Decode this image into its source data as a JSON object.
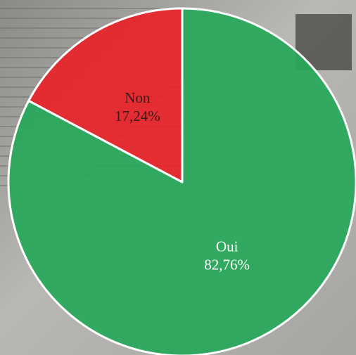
{
  "chart_data": {
    "type": "pie",
    "categories": [
      "Oui",
      "Non"
    ],
    "values": [
      82.76,
      17.24
    ],
    "value_labels": [
      "82,76%",
      "17,24%"
    ],
    "colors": [
      "#27a85a",
      "#e8242a"
    ]
  }
}
